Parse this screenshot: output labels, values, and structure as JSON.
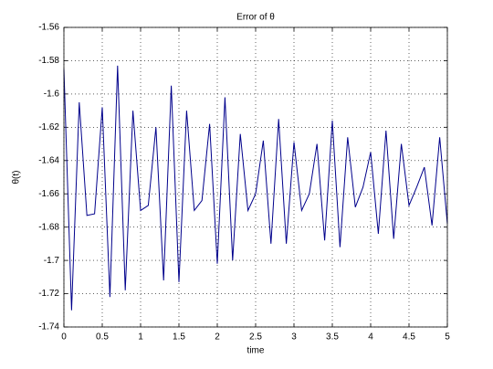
{
  "chart_data": {
    "type": "line",
    "title": "Error of  θ",
    "xlabel": "time",
    "ylabel": "θ(t)",
    "x": [
      0,
      0.1,
      0.2,
      0.3,
      0.4,
      0.5,
      0.6,
      0.7,
      0.8,
      0.9,
      1.0,
      1.1,
      1.2,
      1.3,
      1.4,
      1.5,
      1.6,
      1.7,
      1.8,
      1.9,
      2.0,
      2.1,
      2.2,
      2.3,
      2.4,
      2.5,
      2.6,
      2.7,
      2.8,
      2.9,
      3.0,
      3.1,
      3.2,
      3.3,
      3.4,
      3.5,
      3.6,
      3.7,
      3.8,
      3.9,
      4.0,
      4.1,
      4.2,
      4.3,
      4.4,
      4.5,
      4.6,
      4.7,
      4.8,
      4.9,
      5.0
    ],
    "series": [
      {
        "color": "#00008b",
        "values": [
          -1.585,
          -1.73,
          -1.605,
          -1.673,
          -1.672,
          -1.608,
          -1.722,
          -1.583,
          -1.718,
          -1.61,
          -1.67,
          -1.667,
          -1.62,
          -1.712,
          -1.595,
          -1.713,
          -1.61,
          -1.67,
          -1.664,
          -1.618,
          -1.702,
          -1.602,
          -1.7,
          -1.624,
          -1.67,
          -1.66,
          -1.628,
          -1.69,
          -1.615,
          -1.69,
          -1.629,
          -1.67,
          -1.66,
          -1.63,
          -1.688,
          -1.616,
          -1.692,
          -1.626,
          -1.668,
          -1.656,
          -1.635,
          -1.684,
          -1.622,
          -1.687,
          -1.63,
          -1.667,
          -1.656,
          -1.644,
          -1.679,
          -1.626,
          -1.678
        ]
      }
    ],
    "xlim": [
      0,
      5
    ],
    "xticks": [
      0,
      0.5,
      1,
      1.5,
      2,
      2.5,
      3,
      3.5,
      4,
      4.5,
      5
    ],
    "ylim": [
      -1.74,
      -1.56
    ],
    "yticks": [
      -1.74,
      -1.72,
      -1.7,
      -1.68,
      -1.66,
      -1.64,
      -1.62,
      -1.6,
      -1.58,
      -1.56
    ],
    "grid": true
  }
}
